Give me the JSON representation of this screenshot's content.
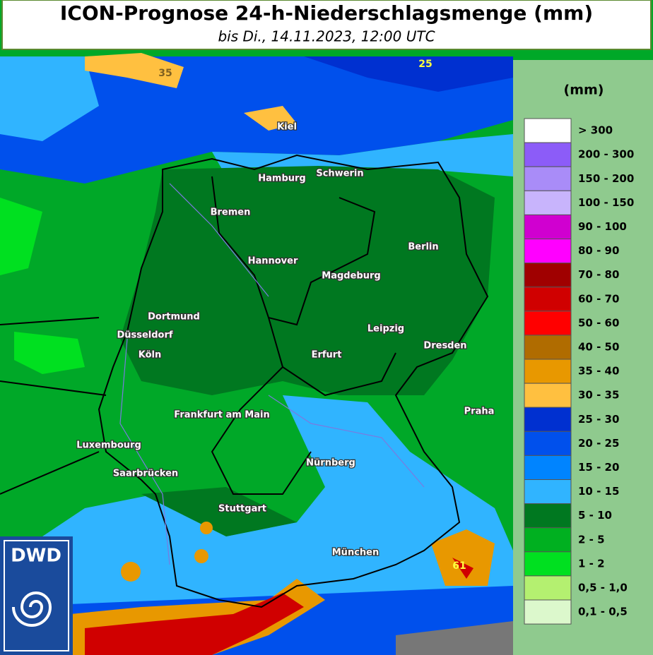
{
  "header": {
    "title": "ICON-Prognose 24-h-Niederschlagsmenge (mm)",
    "subtitle": "bis Di., 14.11.2023, 12:00 UTC"
  },
  "cities": [
    "Kiel",
    "Hamburg",
    "Schwerin",
    "Bremen",
    "Berlin",
    "Hannover",
    "Magdeburg",
    "Dortmund",
    "Düsseldorf",
    "Leipzig",
    "Dresden",
    "Köln",
    "Erfurt",
    "Praha",
    "Frankfurt am Main",
    "Luxembourg",
    "Nürnberg",
    "Saarbrücken",
    "Stuttgart",
    "München"
  ],
  "maxima": [
    35,
    25,
    61
  ],
  "legend": {
    "unit": "(mm)",
    "items": [
      {
        "label": "> 300",
        "color": "#ffffff"
      },
      {
        "label": "200 - 300",
        "color": "#8c5cf8"
      },
      {
        "label": "150 - 200",
        "color": "#a98cf8"
      },
      {
        "label": "100 - 150",
        "color": "#c8b4fc"
      },
      {
        "label": "90 - 100",
        "color": "#d000d0"
      },
      {
        "label": "80 - 90",
        "color": "#ff00ff"
      },
      {
        "label": "70 - 80",
        "color": "#a00000"
      },
      {
        "label": "60 - 70",
        "color": "#d00000"
      },
      {
        "label": "50 - 60",
        "color": "#ff0000"
      },
      {
        "label": "40 - 50",
        "color": "#b06c00"
      },
      {
        "label": "35 - 40",
        "color": "#e89800"
      },
      {
        "label": "30 - 35",
        "color": "#ffc040"
      },
      {
        "label": "25 - 30",
        "color": "#0030d0"
      },
      {
        "label": "20 - 25",
        "color": "#0050ec"
      },
      {
        "label": "15 - 20",
        "color": "#0084ff"
      },
      {
        "label": "10 - 15",
        "color": "#30b4ff"
      },
      {
        "label": "5 - 10",
        "color": "#007820"
      },
      {
        "label": "2 - 5",
        "color": "#00b020"
      },
      {
        "label": "1 - 2",
        "color": "#00e020"
      },
      {
        "label": "0,5 - 1,0",
        "color": "#b4f070"
      },
      {
        "label": "0,1 - 0,5",
        "color": "#dcf8cc"
      }
    ]
  },
  "logo": {
    "text": "DWD"
  }
}
